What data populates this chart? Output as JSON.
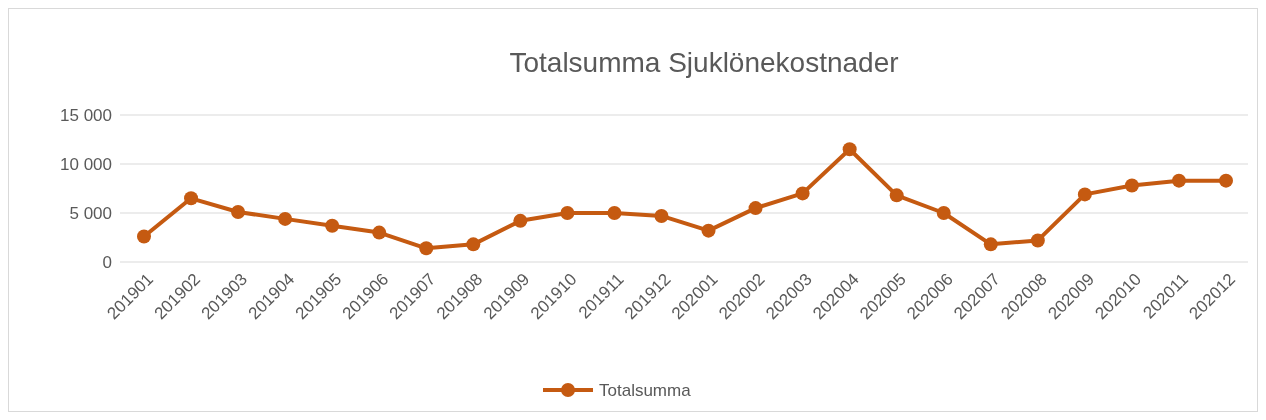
{
  "chart_data": {
    "type": "line",
    "title": "Totalsumma Sjuklönekostnader",
    "categories": [
      "201901",
      "201902",
      "201903",
      "201904",
      "201905",
      "201906",
      "201907",
      "201908",
      "201909",
      "201910",
      "201911",
      "201912",
      "202001",
      "202002",
      "202003",
      "202004",
      "202005",
      "202006",
      "202007",
      "202008",
      "202009",
      "202010",
      "202011",
      "202012"
    ],
    "series": [
      {
        "name": "Totalsumma",
        "color": "#c55a11",
        "values": [
          2600,
          6500,
          5100,
          4400,
          3700,
          3000,
          1400,
          1800,
          4200,
          5000,
          5000,
          4700,
          3200,
          5500,
          7000,
          11500,
          6800,
          5000,
          1800,
          2200,
          6900,
          7800,
          8300,
          8300
        ]
      }
    ],
    "ylim": [
      0,
      15000
    ],
    "yticks": [
      {
        "value": 0,
        "label": "0"
      },
      {
        "value": 5000,
        "label": "5 000"
      },
      {
        "value": 10000,
        "label": "10 000"
      },
      {
        "value": 15000,
        "label": "15 000"
      }
    ],
    "grid": "y",
    "legend": "bottom",
    "marker": "circle",
    "line_style": "solid"
  }
}
